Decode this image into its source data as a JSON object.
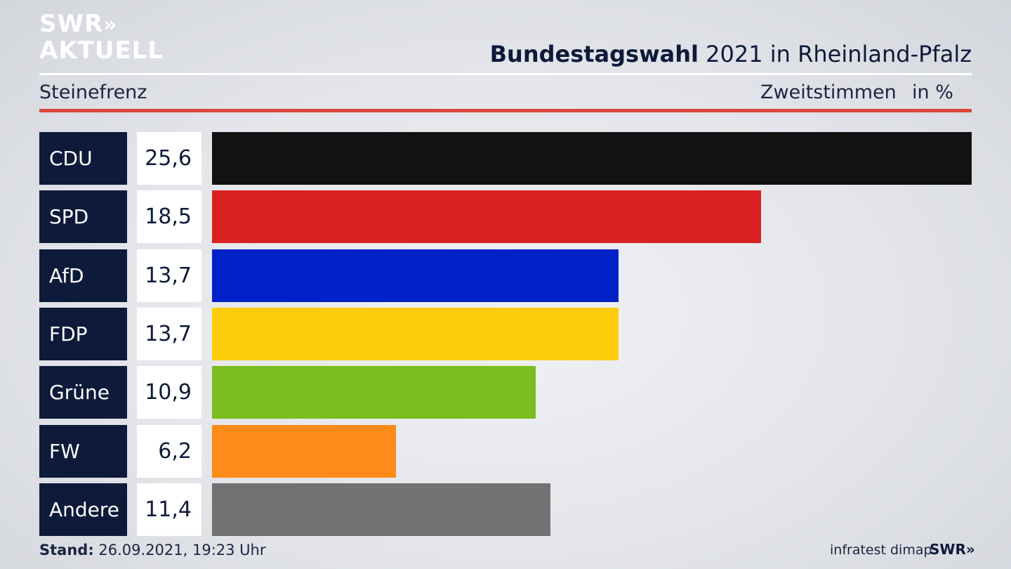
{
  "brand": {
    "line1": "SWR",
    "chevrons": "»",
    "line2": "AKTUELL"
  },
  "header": {
    "title_bold": "Bundestagswahl",
    "title_rest": " 2021 in Rheinland-Pfalz",
    "region": "Steinefrenz",
    "metric": "Zweitstimmen",
    "unit": "in %"
  },
  "footer": {
    "stand_label": "Stand:",
    "stand_value": " 26.09.2021, 19:23 Uhr",
    "source": "infratest dimap",
    "swr": "SWR»"
  },
  "chart_data": {
    "type": "bar",
    "orientation": "horizontal",
    "categories": [
      "CDU",
      "SPD",
      "AfD",
      "FDP",
      "Grüne",
      "FW",
      "Andere"
    ],
    "values": [
      25.6,
      18.5,
      13.7,
      13.7,
      10.9,
      6.2,
      11.4
    ],
    "value_labels": [
      "25,6",
      "18,5",
      "13,7",
      "13,7",
      "10,9",
      "6,2",
      "11,4"
    ],
    "colors": [
      "#121212",
      "#d92020",
      "#0021c8",
      "#fdcd0b",
      "#78be1e",
      "#fd8b1a",
      "#727272"
    ],
    "xlim": [
      0,
      25.6
    ],
    "title": "Bundestagswahl 2021 in Rheinland-Pfalz",
    "grid": false,
    "legend": "none"
  }
}
